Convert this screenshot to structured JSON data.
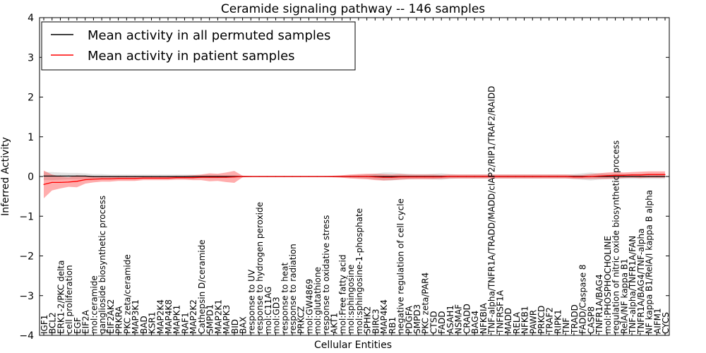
{
  "chart_data": {
    "type": "line",
    "title": "Ceramide signaling pathway -- 146 samples",
    "xlabel": "Cellular Entities",
    "ylabel": "Inferred Activity",
    "ylim": [
      -4,
      4
    ],
    "yticks": [
      -4,
      -3,
      -2,
      -1,
      0,
      1,
      2,
      3,
      4
    ],
    "legend_position": "top-left",
    "categories": [
      "IGF1",
      "BCL2",
      "ERK1-2/PKC delta",
      "cell proliferation",
      "EGF",
      "EIF2A",
      "mol:ceramide",
      "ganglioside biosynthetic process",
      "EIF2AK2",
      "PRKRA",
      "PKC zeta/ceramide",
      "MAP3K1",
      "BAD",
      "KSR1",
      "MAP2K4",
      "MAP4K8",
      "MAPK1",
      "RAF1",
      "MAP2K2",
      "Cathepsin D/ceramide",
      "SMPD1",
      "MAP2K1",
      "MAPK3",
      "BID",
      "BAX",
      "response to UV",
      "response to hydrogen peroxide",
      "mol:C11AG",
      "mol:GD3",
      "response to heat",
      "response to radiation",
      "PRKCZ",
      "mol:GW4869",
      "mol:glutathione",
      "response to oxidative stress",
      "AKT1",
      "mol:Free fatty acid",
      "mol:sphingosine",
      "mol:sphingosine-1-phosphate",
      "SPHK2",
      "BIRC3",
      "MAP4K4",
      "RB1",
      "negative regulation of cell cycle",
      "PDGFA",
      "SMPD3",
      "PKC zeta/PAR4",
      "CTSD",
      "FADD",
      "ASAH1",
      "NSMAF",
      "CRADD",
      "BAG4",
      "NFKBIA",
      "TNF-alpha/TNFR1A/TRADD/MADD/cIAP2/RIP1/TRAF2/RAIDD",
      "TNFRSF1A",
      "MADD",
      "RELA",
      "NFKB1",
      "PAWR",
      "PRKCD",
      "TRAF2",
      "RIPK1",
      "TNF",
      "TRADD",
      "FADD/Caspase 8",
      "CASP8",
      "TNFR1A/BAG4",
      "mol:PHOSPHOCHOLINE",
      "regulation of nitric oxide biosynthetic process",
      "RelA/NF kappa B1",
      "TNF-alpha/TNFR1A/FAN",
      "TNFR1A/BAG4/TNF-alpha",
      "NF kappa B1/RelA/I kappa B alpha",
      "AIFM1",
      "CYCS"
    ],
    "series": [
      {
        "name": "Mean activity in all permuted samples",
        "color": "#000000",
        "values": [
          0.01,
          0.01,
          0.01,
          0.01,
          0.01,
          0.01,
          0.0,
          0.0,
          0.0,
          0.0,
          0.0,
          0.0,
          0.0,
          0.0,
          0.0,
          0.0,
          0.0,
          0.0,
          0.0,
          0.0,
          0.0,
          0.0,
          0.0,
          0.0,
          0.0,
          0.0,
          0.0,
          0.0,
          0.0,
          0.0,
          0.0,
          0.0,
          0.0,
          0.0,
          0.0,
          0.0,
          0.0,
          0.0,
          0.0,
          0.0,
          0.0,
          0.0,
          0.0,
          0.0,
          0.0,
          0.0,
          0.0,
          0.0,
          0.0,
          0.0,
          0.0,
          0.0,
          0.0,
          0.0,
          0.0,
          0.0,
          0.0,
          0.0,
          0.0,
          0.0,
          0.0,
          0.0,
          0.0,
          0.0,
          0.0,
          0.0,
          0.0,
          0.0,
          0.0,
          0.0,
          0.0,
          0.0,
          0.0,
          0.0,
          0.0,
          0.0
        ],
        "band": [
          0.1,
          0.1,
          0.09,
          0.08,
          0.08,
          0.07,
          0.06,
          0.06,
          0.05,
          0.05,
          0.05,
          0.05,
          0.05,
          0.05,
          0.05,
          0.05,
          0.05,
          0.05,
          0.05,
          0.04,
          0.04,
          0.04,
          0.03,
          0.03,
          0.02,
          0.01,
          0.01,
          0.01,
          0.01,
          0.01,
          0.01,
          0.01,
          0.01,
          0.01,
          0.01,
          0.01,
          0.02,
          0.03,
          0.04,
          0.05,
          0.07,
          0.1,
          0.1,
          0.08,
          0.07,
          0.06,
          0.06,
          0.07,
          0.08,
          0.06,
          0.05,
          0.05,
          0.05,
          0.05,
          0.05,
          0.05,
          0.05,
          0.05,
          0.05,
          0.05,
          0.05,
          0.05,
          0.05,
          0.05,
          0.06,
          0.08,
          0.1,
          0.08,
          0.07,
          0.07,
          0.06,
          0.06,
          0.06,
          0.06,
          0.06,
          0.06
        ]
      },
      {
        "name": "Mean activity in patient samples",
        "color": "#ff0000",
        "values": [
          -0.2,
          -0.15,
          -0.15,
          -0.14,
          -0.12,
          -0.08,
          -0.07,
          -0.06,
          -0.06,
          -0.05,
          -0.05,
          -0.05,
          -0.04,
          -0.04,
          -0.04,
          -0.04,
          -0.03,
          -0.03,
          -0.03,
          -0.02,
          -0.02,
          -0.02,
          -0.02,
          -0.01,
          0.0,
          0.0,
          0.0,
          0.0,
          0.0,
          0.0,
          0.0,
          0.0,
          0.0,
          0.0,
          0.0,
          0.0,
          0.0,
          0.0,
          0.0,
          0.0,
          -0.01,
          -0.02,
          -0.02,
          -0.01,
          -0.01,
          -0.01,
          -0.01,
          -0.01,
          -0.01,
          0.0,
          0.0,
          0.0,
          0.0,
          0.0,
          0.0,
          0.0,
          0.0,
          0.0,
          0.0,
          0.0,
          0.0,
          0.0,
          0.0,
          0.0,
          -0.01,
          -0.01,
          0.0,
          0.01,
          0.02,
          0.03,
          0.03,
          0.04,
          0.04,
          0.05,
          0.05,
          0.05
        ],
        "band": [
          0.35,
          0.2,
          0.15,
          0.12,
          0.15,
          0.1,
          0.08,
          0.07,
          0.07,
          0.06,
          0.06,
          0.06,
          0.05,
          0.05,
          0.05,
          0.05,
          0.05,
          0.05,
          0.06,
          0.07,
          0.1,
          0.09,
          0.12,
          0.15,
          0.02,
          0.01,
          0.01,
          0.01,
          0.01,
          0.01,
          0.01,
          0.01,
          0.01,
          0.01,
          0.01,
          0.02,
          0.03,
          0.05,
          0.06,
          0.07,
          0.08,
          0.08,
          0.07,
          0.07,
          0.06,
          0.06,
          0.06,
          0.06,
          0.05,
          0.05,
          0.05,
          0.05,
          0.05,
          0.05,
          0.05,
          0.05,
          0.05,
          0.05,
          0.05,
          0.05,
          0.05,
          0.05,
          0.05,
          0.05,
          0.05,
          0.05,
          0.06,
          0.07,
          0.08,
          0.08,
          0.07,
          0.07,
          0.08,
          0.08,
          0.08,
          0.08
        ]
      }
    ]
  }
}
